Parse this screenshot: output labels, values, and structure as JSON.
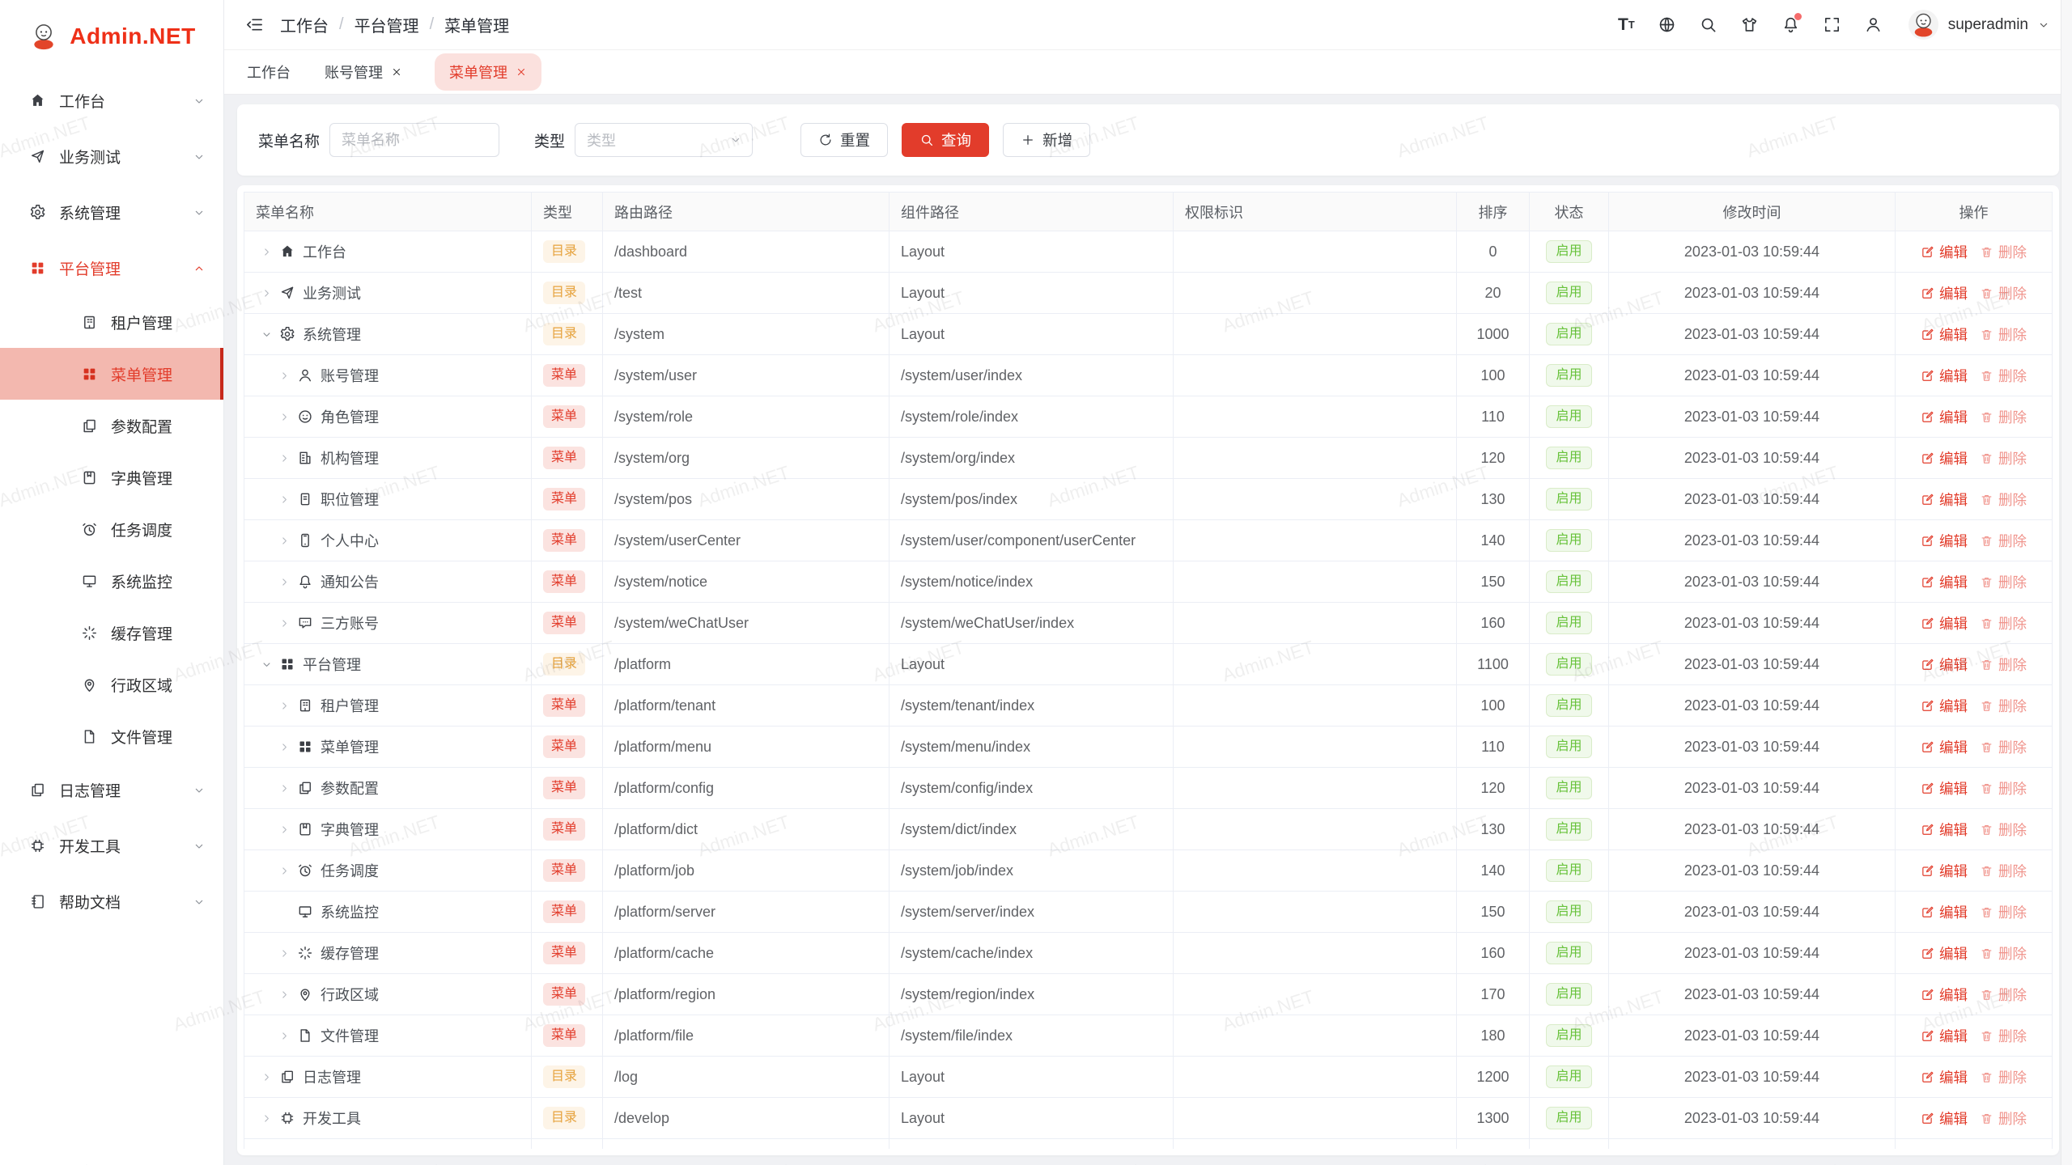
{
  "app": {
    "name": "Admin.NET",
    "watermark": "Admin.NET"
  },
  "header": {
    "breadcrumb": [
      "工作台",
      "平台管理",
      "菜单管理"
    ],
    "separator": "/",
    "font_icon_big": "T",
    "font_icon_small": "T",
    "user_name": "superadmin"
  },
  "tabs": [
    {
      "label": "工作台",
      "closable": false,
      "active": false
    },
    {
      "label": "账号管理",
      "closable": true,
      "active": false
    },
    {
      "label": "菜单管理",
      "closable": true,
      "active": true
    }
  ],
  "sidebar": {
    "items": [
      {
        "key": "workbench",
        "label": "工作台",
        "icon": "home",
        "level": 0,
        "arrow": "down"
      },
      {
        "key": "business-test",
        "label": "业务测试",
        "icon": "send",
        "level": 0,
        "arrow": "down"
      },
      {
        "key": "system",
        "label": "系统管理",
        "icon": "gear",
        "level": 0,
        "arrow": "down"
      },
      {
        "key": "platform",
        "label": "平台管理",
        "icon": "grid",
        "level": 0,
        "arrow": "up",
        "highlight": true
      },
      {
        "key": "tenant",
        "label": "租户管理",
        "icon": "tenant",
        "level": 1
      },
      {
        "key": "menu",
        "label": "菜单管理",
        "icon": "grid",
        "level": 1,
        "active": true
      },
      {
        "key": "config",
        "label": "参数配置",
        "icon": "copy",
        "level": 1
      },
      {
        "key": "dict",
        "label": "字典管理",
        "icon": "book",
        "level": 1
      },
      {
        "key": "job",
        "label": "任务调度",
        "icon": "alarm",
        "level": 1
      },
      {
        "key": "monitor",
        "label": "系统监控",
        "icon": "monitor",
        "level": 1
      },
      {
        "key": "cache",
        "label": "缓存管理",
        "icon": "spinner",
        "level": 1
      },
      {
        "key": "region",
        "label": "行政区域",
        "icon": "pin",
        "level": 1
      },
      {
        "key": "file",
        "label": "文件管理",
        "icon": "file",
        "level": 1
      },
      {
        "key": "log",
        "label": "日志管理",
        "icon": "copy",
        "level": 0,
        "arrow": "down"
      },
      {
        "key": "develop",
        "label": "开发工具",
        "icon": "cpu",
        "level": 0,
        "arrow": "down"
      },
      {
        "key": "help-doc",
        "label": "帮助文档",
        "icon": "notebook",
        "level": 0,
        "arrow": "down"
      }
    ]
  },
  "filters": {
    "name_label": "菜单名称",
    "name_placeholder": "菜单名称",
    "type_label": "类型",
    "type_placeholder": "类型",
    "reset_label": "重置",
    "search_label": "查询",
    "add_label": "新增"
  },
  "table": {
    "columns": [
      {
        "key": "name",
        "label": "菜单名称"
      },
      {
        "key": "type",
        "label": "类型"
      },
      {
        "key": "route",
        "label": "路由路径"
      },
      {
        "key": "component",
        "label": "组件路径"
      },
      {
        "key": "permission",
        "label": "权限标识"
      },
      {
        "key": "sort",
        "label": "排序"
      },
      {
        "key": "status",
        "label": "状态"
      },
      {
        "key": "time",
        "label": "修改时间"
      },
      {
        "key": "ops",
        "label": "操作"
      }
    ],
    "type_labels": {
      "dir": "目录",
      "menu": "菜单"
    },
    "edit_label": "编辑",
    "delete_label": "删除",
    "rows": [
      {
        "name": "工作台",
        "icon": "home",
        "level": 0,
        "expand": "collapsed",
        "type": "dir",
        "route": "/dashboard",
        "component": "Layout",
        "permission": "",
        "sort": "0",
        "status": "启用",
        "time": "2023-01-03 10:59:44"
      },
      {
        "name": "业务测试",
        "icon": "send",
        "level": 0,
        "expand": "collapsed",
        "type": "dir",
        "route": "/test",
        "component": "Layout",
        "permission": "",
        "sort": "20",
        "status": "启用",
        "time": "2023-01-03 10:59:44"
      },
      {
        "name": "系统管理",
        "icon": "gear",
        "level": 0,
        "expand": "expanded",
        "type": "dir",
        "route": "/system",
        "component": "Layout",
        "permission": "",
        "sort": "1000",
        "status": "启用",
        "time": "2023-01-03 10:59:44"
      },
      {
        "name": "账号管理",
        "icon": "user",
        "level": 1,
        "expand": "collapsed",
        "type": "menu",
        "route": "/system/user",
        "component": "/system/user/index",
        "permission": "",
        "sort": "100",
        "status": "启用",
        "time": "2023-01-03 10:59:44"
      },
      {
        "name": "角色管理",
        "icon": "face",
        "level": 1,
        "expand": "collapsed",
        "type": "menu",
        "route": "/system/role",
        "component": "/system/role/index",
        "permission": "",
        "sort": "110",
        "status": "启用",
        "time": "2023-01-03 10:59:44"
      },
      {
        "name": "机构管理",
        "icon": "org",
        "level": 1,
        "expand": "collapsed",
        "type": "menu",
        "route": "/system/org",
        "component": "/system/org/index",
        "permission": "",
        "sort": "120",
        "status": "启用",
        "time": "2023-01-03 10:59:44"
      },
      {
        "name": "职位管理",
        "icon": "pos",
        "level": 1,
        "expand": "collapsed",
        "type": "menu",
        "route": "/system/pos",
        "component": "/system/pos/index",
        "permission": "",
        "sort": "130",
        "status": "启用",
        "time": "2023-01-03 10:59:44"
      },
      {
        "name": "个人中心",
        "icon": "usercenter",
        "level": 1,
        "expand": "collapsed",
        "type": "menu",
        "route": "/system/userCenter",
        "component": "/system/user/component/userCenter",
        "permission": "",
        "sort": "140",
        "status": "启用",
        "time": "2023-01-03 10:59:44"
      },
      {
        "name": "通知公告",
        "icon": "bell",
        "level": 1,
        "expand": "collapsed",
        "type": "menu",
        "route": "/system/notice",
        "component": "/system/notice/index",
        "permission": "",
        "sort": "150",
        "status": "启用",
        "time": "2023-01-03 10:59:44"
      },
      {
        "name": "三方账号",
        "icon": "chat",
        "level": 1,
        "expand": "collapsed",
        "type": "menu",
        "route": "/system/weChatUser",
        "component": "/system/weChatUser/index",
        "permission": "",
        "sort": "160",
        "status": "启用",
        "time": "2023-01-03 10:59:44"
      },
      {
        "name": "平台管理",
        "icon": "grid",
        "level": 0,
        "expand": "expanded",
        "type": "dir",
        "route": "/platform",
        "component": "Layout",
        "permission": "",
        "sort": "1100",
        "status": "启用",
        "time": "2023-01-03 10:59:44"
      },
      {
        "name": "租户管理",
        "icon": "tenant",
        "level": 1,
        "expand": "collapsed",
        "type": "menu",
        "route": "/platform/tenant",
        "component": "/system/tenant/index",
        "permission": "",
        "sort": "100",
        "status": "启用",
        "time": "2023-01-03 10:59:44"
      },
      {
        "name": "菜单管理",
        "icon": "grid",
        "level": 1,
        "expand": "collapsed",
        "type": "menu",
        "route": "/platform/menu",
        "component": "/system/menu/index",
        "permission": "",
        "sort": "110",
        "status": "启用",
        "time": "2023-01-03 10:59:44"
      },
      {
        "name": "参数配置",
        "icon": "copy",
        "level": 1,
        "expand": "collapsed",
        "type": "menu",
        "route": "/platform/config",
        "component": "/system/config/index",
        "permission": "",
        "sort": "120",
        "status": "启用",
        "time": "2023-01-03 10:59:44"
      },
      {
        "name": "字典管理",
        "icon": "book",
        "level": 1,
        "expand": "collapsed",
        "type": "menu",
        "route": "/platform/dict",
        "component": "/system/dict/index",
        "permission": "",
        "sort": "130",
        "status": "启用",
        "time": "2023-01-03 10:59:44"
      },
      {
        "name": "任务调度",
        "icon": "alarm",
        "level": 1,
        "expand": "collapsed",
        "type": "menu",
        "route": "/platform/job",
        "component": "/system/job/index",
        "permission": "",
        "sort": "140",
        "status": "启用",
        "time": "2023-01-03 10:59:44"
      },
      {
        "name": "系统监控",
        "icon": "monitor",
        "level": 1,
        "expand": "none",
        "type": "menu",
        "route": "/platform/server",
        "component": "/system/server/index",
        "permission": "",
        "sort": "150",
        "status": "启用",
        "time": "2023-01-03 10:59:44"
      },
      {
        "name": "缓存管理",
        "icon": "spinner",
        "level": 1,
        "expand": "collapsed",
        "type": "menu",
        "route": "/platform/cache",
        "component": "/system/cache/index",
        "permission": "",
        "sort": "160",
        "status": "启用",
        "time": "2023-01-03 10:59:44"
      },
      {
        "name": "行政区域",
        "icon": "pin",
        "level": 1,
        "expand": "collapsed",
        "type": "menu",
        "route": "/platform/region",
        "component": "/system/region/index",
        "permission": "",
        "sort": "170",
        "status": "启用",
        "time": "2023-01-03 10:59:44"
      },
      {
        "name": "文件管理",
        "icon": "file",
        "level": 1,
        "expand": "collapsed",
        "type": "menu",
        "route": "/platform/file",
        "component": "/system/file/index",
        "permission": "",
        "sort": "180",
        "status": "启用",
        "time": "2023-01-03 10:59:44"
      },
      {
        "name": "日志管理",
        "icon": "copy",
        "level": 0,
        "expand": "collapsed",
        "type": "dir",
        "route": "/log",
        "component": "Layout",
        "permission": "",
        "sort": "1200",
        "status": "启用",
        "time": "2023-01-03 10:59:44"
      },
      {
        "name": "开发工具",
        "icon": "cpu",
        "level": 0,
        "expand": "collapsed",
        "type": "dir",
        "route": "/develop",
        "component": "Layout",
        "permission": "",
        "sort": "1300",
        "status": "启用",
        "time": "2023-01-03 10:59:44"
      }
    ]
  },
  "colors": {
    "primary": "#e23c2b",
    "success": "#67c23a",
    "warning": "#e6a23c"
  }
}
